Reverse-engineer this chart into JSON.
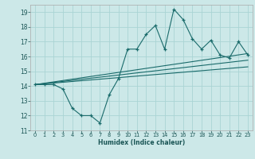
{
  "title": "",
  "xlabel": "Humidex (Indice chaleur)",
  "bg_color": "#cce8e8",
  "line_color": "#1a6b6b",
  "grid_color": "#aad4d4",
  "xlim": [
    -0.5,
    23.5
  ],
  "ylim": [
    11,
    19.5
  ],
  "yticks": [
    11,
    12,
    13,
    14,
    15,
    16,
    17,
    18,
    19
  ],
  "xticks": [
    0,
    1,
    2,
    3,
    4,
    5,
    6,
    7,
    8,
    9,
    10,
    11,
    12,
    13,
    14,
    15,
    16,
    17,
    18,
    19,
    20,
    21,
    22,
    23
  ],
  "main_x": [
    0,
    1,
    2,
    3,
    4,
    5,
    6,
    7,
    8,
    9,
    10,
    11,
    12,
    13,
    14,
    15,
    16,
    17,
    18,
    19,
    20,
    21,
    22,
    23
  ],
  "main_y": [
    14.1,
    14.1,
    14.1,
    13.8,
    12.5,
    12.0,
    12.0,
    11.5,
    13.4,
    14.5,
    16.5,
    16.5,
    17.5,
    18.1,
    16.5,
    19.2,
    18.5,
    17.2,
    16.5,
    17.1,
    16.1,
    15.9,
    17.0,
    16.1
  ],
  "line1_x": [
    0,
    23
  ],
  "line1_y": [
    14.1,
    16.2
  ],
  "line2_x": [
    0,
    23
  ],
  "line2_y": [
    14.1,
    15.75
  ],
  "line3_x": [
    0,
    23
  ],
  "line3_y": [
    14.1,
    15.3
  ]
}
